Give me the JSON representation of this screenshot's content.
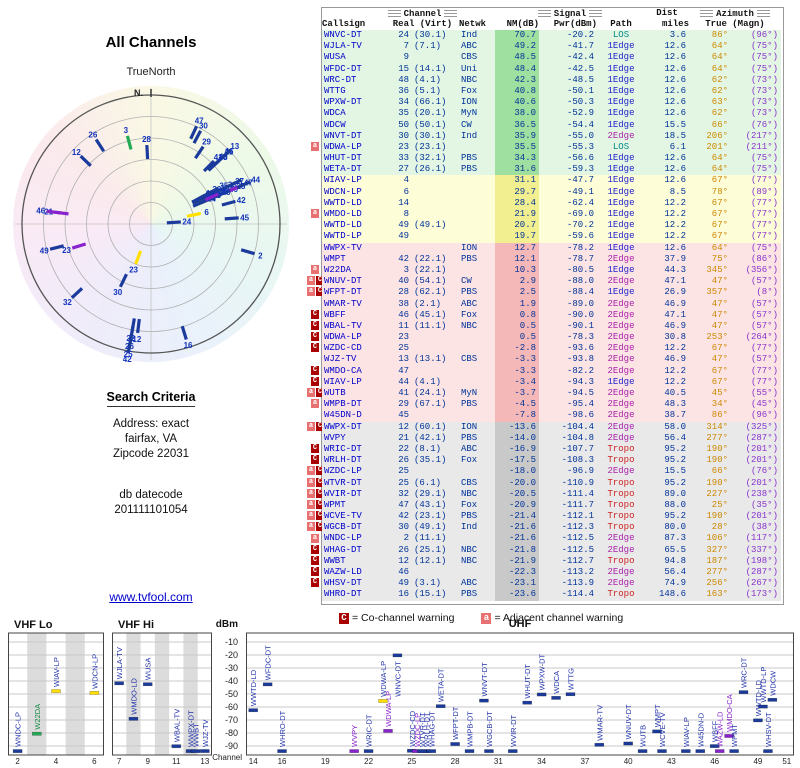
{
  "polar": {
    "title": "All Channels",
    "orientation_label": "TrueNorth",
    "north_tick": "N."
  },
  "search": {
    "title": "Search Criteria",
    "address_label": "Address: exact",
    "city": "fairfax, VA",
    "zip": "Zipcode 22031",
    "datecode_label": "db datecode",
    "datecode": "201111101054"
  },
  "link": "www.tvfool.com",
  "table": {
    "groups": {
      "channel": "Channel",
      "signal": "Signal",
      "dist": "Dist",
      "azimuth": "Azimuth"
    },
    "headers": {
      "callsign": "Callsign",
      "real_virt": "Real (Virt)",
      "netwk": "Netwk",
      "nm": "NM(dB)",
      "pwr": "Pwr(dBm)",
      "path": "Path",
      "miles": "miles",
      "true_magn": "True (Magn)"
    }
  },
  "legend": {
    "c": "C",
    "c_text": "= Co-channel warning",
    "a": "a",
    "a_text": "= Adjacent channel warning"
  },
  "bands": {
    "lo_title": "VHF Lo",
    "hi_title": "VHF Hi",
    "uhf_title": "UHF",
    "dbm": "dBm",
    "channel_label": "Channel",
    "dbm_ticks": [
      -10,
      -20,
      -30,
      -40,
      -50,
      -60,
      -70,
      -80,
      -90
    ],
    "lo_ticks": [
      2,
      4,
      6
    ],
    "hi_ticks": [
      7,
      9,
      11,
      13
    ],
    "uhf_ticks": [
      14,
      16,
      19,
      22,
      25,
      28,
      31,
      34,
      37,
      40,
      43,
      46,
      49,
      51
    ]
  },
  "colors": {
    "callsign": "#0000cc",
    "num": "#003399",
    "azt": "#cc8800",
    "azm": "#8833cc",
    "path": {
      "LOS": "#008888",
      "1Edge": "#2222cc",
      "2Edge": "#aa22aa",
      "Tropo": "#cc2222"
    },
    "bands": {
      "green": {
        "bg": "#e3f6e3",
        "bar": "#9fdf9f"
      },
      "yellow": {
        "bg": "#fdfdd8",
        "bar": "#f1ef8f"
      },
      "pink": {
        "bg": "#fde4e4",
        "bar": "#f5b8b8"
      },
      "gray": {
        "bg": "#e9e9e9",
        "bar": "#c9c9c9"
      }
    },
    "clr": {
      "blue": {
        "bar": "#1a3a9c",
        "label": "#2233aa"
      },
      "yellow": {
        "bar": "#ffe000",
        "label": "#2233aa"
      },
      "purple": {
        "bar": "#8822cc",
        "label": "#8822cc"
      },
      "green": {
        "bar": "#22aa55",
        "label": "#118844"
      }
    }
  },
  "chart_data": {
    "type": "table",
    "title": "All Channels",
    "columns": [
      "callsign",
      "real",
      "virt",
      "netwk",
      "nm_db",
      "pwr_dbm",
      "path",
      "dist_miles",
      "az_true",
      "az_magn",
      "warn",
      "band_color",
      "marker_color"
    ],
    "stations": [
      [
        "WNVC-DT",
        24,
        "(30.1)",
        "Ind",
        "70.7",
        "-20.2",
        "LOS",
        "3.6",
        "86°",
        "(96°)",
        "",
        "green",
        "blue"
      ],
      [
        "WJLA-TV",
        7,
        "(7.1)",
        "ABC",
        "49.2",
        "-41.7",
        "1Edge",
        "12.6",
        "64°",
        "(75°)",
        "",
        "green",
        "blue"
      ],
      [
        "WUSA",
        9,
        "",
        "CBS",
        "48.5",
        "-42.4",
        "1Edge",
        "12.6",
        "64°",
        "(75°)",
        "",
        "green",
        "blue"
      ],
      [
        "WFDC-DT",
        15,
        "(14.1)",
        "Uni",
        "48.4",
        "-42.5",
        "1Edge",
        "12.6",
        "64°",
        "(75°)",
        "",
        "green",
        "blue"
      ],
      [
        "WRC-DT",
        48,
        "(4.1)",
        "NBC",
        "42.3",
        "-48.5",
        "1Edge",
        "12.6",
        "62°",
        "(73°)",
        "",
        "green",
        "blue"
      ],
      [
        "WTTG",
        36,
        "(5.1)",
        "Fox",
        "40.8",
        "-50.1",
        "1Edge",
        "12.6",
        "62°",
        "(73°)",
        "",
        "green",
        "blue"
      ],
      [
        "WPXW-DT",
        34,
        "(66.1)",
        "ION",
        "40.6",
        "-50.3",
        "1Edge",
        "12.6",
        "63°",
        "(73°)",
        "",
        "green",
        "blue"
      ],
      [
        "WDCA",
        35,
        "(20.1)",
        "MyN",
        "38.0",
        "-52.9",
        "1Edge",
        "12.6",
        "62°",
        "(73°)",
        "",
        "green",
        "blue"
      ],
      [
        "WDCW",
        50,
        "(50.1)",
        "CW",
        "36.5",
        "-54.4",
        "1Edge",
        "15.5",
        "66°",
        "(76°)",
        "",
        "green",
        "blue"
      ],
      [
        "WNVT-DT",
        30,
        "(30.1)",
        "Ind",
        "35.9",
        "-55.0",
        "2Edge",
        "18.5",
        "206°",
        "(217°)",
        "",
        "green",
        "blue"
      ],
      [
        "WDWA-LP",
        23,
        "(23.1)",
        "",
        "35.5",
        "-55.3",
        "LOS",
        "6.1",
        "201°",
        "(211°)",
        "a",
        "green",
        "yellow"
      ],
      [
        "WHUT-DT",
        33,
        "(32.1)",
        "PBS",
        "34.3",
        "-56.6",
        "1Edge",
        "12.6",
        "64°",
        "(75°)",
        "",
        "green",
        "blue"
      ],
      [
        "WETA-DT",
        27,
        "(26.1)",
        "PBS",
        "31.6",
        "-59.3",
        "1Edge",
        "12.6",
        "64°",
        "(75°)",
        "",
        "green",
        "blue"
      ],
      [
        "WIAV-LP",
        4,
        "",
        "",
        "31.1",
        "-47.7",
        "1Edge",
        "12.6",
        "67°",
        "(77°)",
        "",
        "yellow",
        "yellow"
      ],
      [
        "WDCN-LP",
        6,
        "",
        "",
        "29.7",
        "-49.1",
        "1Edge",
        "8.5",
        "78°",
        "(89°)",
        "",
        "yellow",
        "yellow"
      ],
      [
        "WWTD-LD",
        14,
        "",
        "",
        "28.4",
        "-62.4",
        "1Edge",
        "12.2",
        "67°",
        "(77°)",
        "",
        "yellow",
        "blue"
      ],
      [
        "WMDO-LD",
        8,
        "",
        "",
        "21.9",
        "-69.0",
        "1Edge",
        "12.2",
        "67°",
        "(77°)",
        "a",
        "yellow",
        "blue"
      ],
      [
        "WWTD-LD",
        49,
        "(49.1)",
        "",
        "20.7",
        "-70.2",
        "1Edge",
        "12.2",
        "67°",
        "(77°)",
        "",
        "yellow",
        "blue"
      ],
      [
        "WWTD-LP",
        49,
        "",
        "",
        "19.7",
        "-59.6",
        "1Edge",
        "12.2",
        "67°",
        "(77°)",
        "",
        "yellow",
        "blue"
      ],
      [
        "WWPX-TV",
        null,
        "",
        "ION",
        "12.7",
        "-78.2",
        "1Edge",
        "12.6",
        "64°",
        "(75°)",
        "",
        "pink",
        "blue"
      ],
      [
        "WMPT",
        42,
        "(22.1)",
        "PBS",
        "12.1",
        "-78.7",
        "2Edge",
        "37.9",
        "75°",
        "(86°)",
        "",
        "pink",
        "blue"
      ],
      [
        "W22DA",
        3,
        "(22.1)",
        "",
        "10.3",
        "-80.5",
        "1Edge",
        "44.3",
        "345°",
        "(356°)",
        "a",
        "pink",
        "green"
      ],
      [
        "WNUV-DT",
        40,
        "(54.1)",
        "CW",
        "2.9",
        "-88.0",
        "2Edge",
        "47.1",
        "47°",
        "(57°)",
        "aC",
        "pink",
        "blue"
      ],
      [
        "WFPT-DT",
        28,
        "(62.1)",
        "PBS",
        "2.5",
        "-88.4",
        "1Edge",
        "26.9",
        "357°",
        "(8°)",
        "aC",
        "pink",
        "blue"
      ],
      [
        "WMAR-TV",
        38,
        "(2.1)",
        "ABC",
        "1.9",
        "-89.0",
        "2Edge",
        "46.9",
        "47°",
        "(57°)",
        "",
        "pink",
        "blue"
      ],
      [
        "WBFF",
        46,
        "(45.1)",
        "Fox",
        "0.8",
        "-90.0",
        "2Edge",
        "47.1",
        "47°",
        "(57°)",
        "C",
        "pink",
        "blue"
      ],
      [
        "WBAL-TV",
        11,
        "(11.1)",
        "NBC",
        "0.5",
        "-90.1",
        "2Edge",
        "46.9",
        "47°",
        "(57°)",
        "C",
        "pink",
        "blue"
      ],
      [
        "WDWA-LP",
        23,
        "",
        "",
        "0.5",
        "-78.3",
        "2Edge",
        "30.8",
        "253°",
        "(264°)",
        "C",
        "pink",
        "purple"
      ],
      [
        "WZDC-CD",
        25,
        "",
        "",
        "-2.8",
        "-93.6",
        "2Edge",
        "12.2",
        "67°",
        "(77°)",
        "C",
        "pink",
        "blue"
      ],
      [
        "WJZ-TV",
        13,
        "(13.1)",
        "CBS",
        "-3.3",
        "-93.8",
        "2Edge",
        "46.9",
        "47°",
        "(57°)",
        "",
        "pink",
        "blue"
      ],
      [
        "WMDO-CA",
        47,
        "",
        "",
        "-3.3",
        "-82.2",
        "2Edge",
        "12.2",
        "67°",
        "(77°)",
        "C",
        "pink",
        "purple"
      ],
      [
        "WIAV-LP",
        44,
        "(4.1)",
        "",
        "-3.4",
        "-94.3",
        "1Edge",
        "12.2",
        "67°",
        "(77°)",
        "C",
        "pink",
        "blue"
      ],
      [
        "WUTB",
        41,
        "(24.1)",
        "MyN",
        "-3.7",
        "-94.5",
        "2Edge",
        "40.5",
        "45°",
        "(55°)",
        "aC",
        "pink",
        "blue"
      ],
      [
        "WMPB-DT",
        29,
        "(67.1)",
        "PBS",
        "-4.5",
        "-95.4",
        "2Edge",
        "48.3",
        "34°",
        "(45°)",
        "a",
        "pink",
        "blue"
      ],
      [
        "W45DN-D",
        45,
        "",
        "",
        "-7.8",
        "-98.6",
        "2Edge",
        "38.7",
        "86°",
        "(96°)",
        "",
        "pink",
        "blue"
      ],
      [
        "WWPX-DT",
        12,
        "(60.1)",
        "ION",
        "-13.6",
        "-104.4",
        "2Edge",
        "58.0",
        "314°",
        "(325°)",
        "aC",
        "gray",
        "blue"
      ],
      [
        "WVPY",
        21,
        "(42.1)",
        "PBS",
        "-14.0",
        "-104.8",
        "2Edge",
        "56.4",
        "277°",
        "(287°)",
        "",
        "gray",
        "purple"
      ],
      [
        "WRIC-DT",
        22,
        "(8.1)",
        "ABC",
        "-16.9",
        "-107.7",
        "Tropo",
        "95.2",
        "190°",
        "(201°)",
        "C",
        "gray",
        "blue"
      ],
      [
        "WRLH-DT",
        26,
        "(35.1)",
        "Fox",
        "-17.5",
        "-108.3",
        "Tropo",
        "95.2",
        "190°",
        "(201°)",
        "C",
        "gray",
        "blue"
      ],
      [
        "WZDC-LP",
        25,
        "",
        "",
        "-18.0",
        "-96.9",
        "2Edge",
        "15.5",
        "66°",
        "(76°)",
        "aC",
        "gray",
        "purple"
      ],
      [
        "WTVR-DT",
        25,
        "(6.1)",
        "CBS",
        "-20.0",
        "-110.9",
        "Tropo",
        "95.2",
        "190°",
        "(201°)",
        "aC",
        "gray",
        "blue"
      ],
      [
        "WVIR-DT",
        32,
        "(29.1)",
        "NBC",
        "-20.5",
        "-111.4",
        "Tropo",
        "89.0",
        "227°",
        "(238°)",
        "aC",
        "gray",
        "blue"
      ],
      [
        "WPMT",
        47,
        "(43.1)",
        "Fox",
        "-20.9",
        "-111.7",
        "Tropo",
        "88.0",
        "25°",
        "(35°)",
        "aC",
        "gray",
        "blue"
      ],
      [
        "WCVE-TV",
        42,
        "(23.1)",
        "PBS",
        "-21.4",
        "-112.1",
        "Tropo",
        "95.2",
        "190°",
        "(201°)",
        "aC",
        "gray",
        "blue"
      ],
      [
        "WGCB-DT",
        30,
        "(49.1)",
        "Ind",
        "-21.6",
        "-112.3",
        "Tropo",
        "80.0",
        "28°",
        "(38°)",
        "aC",
        "gray",
        "blue"
      ],
      [
        "WNDC-LP",
        2,
        "(11.1)",
        "",
        "-21.6",
        "-112.5",
        "2Edge",
        "87.3",
        "106°",
        "(117°)",
        "a",
        "gray",
        "blue"
      ],
      [
        "WHAG-DT",
        26,
        "(25.1)",
        "NBC",
        "-21.8",
        "-112.5",
        "2Edge",
        "65.5",
        "327°",
        "(337°)",
        "C",
        "gray",
        "blue"
      ],
      [
        "WWBT",
        12,
        "(12.1)",
        "NBC",
        "-21.9",
        "-112.7",
        "Tropo",
        "94.8",
        "187°",
        "(198°)",
        "C",
        "gray",
        "blue"
      ],
      [
        "WAZW-LD",
        46,
        "",
        "",
        "-22.3",
        "-113.2",
        "2Edge",
        "56.4",
        "277°",
        "(287°)",
        "C",
        "gray",
        "purple"
      ],
      [
        "WHSV-DT",
        49,
        "(3.1)",
        "ABC",
        "-23.1",
        "-113.9",
        "2Edge",
        "74.9",
        "256°",
        "(267°)",
        "C",
        "gray",
        "blue"
      ],
      [
        "WHRO-DT",
        16,
        "(15.1)",
        "PBS",
        "-23.6",
        "-114.4",
        "Tropo",
        "148.6",
        "163°",
        "(173°)",
        "",
        "gray",
        "blue"
      ]
    ]
  }
}
